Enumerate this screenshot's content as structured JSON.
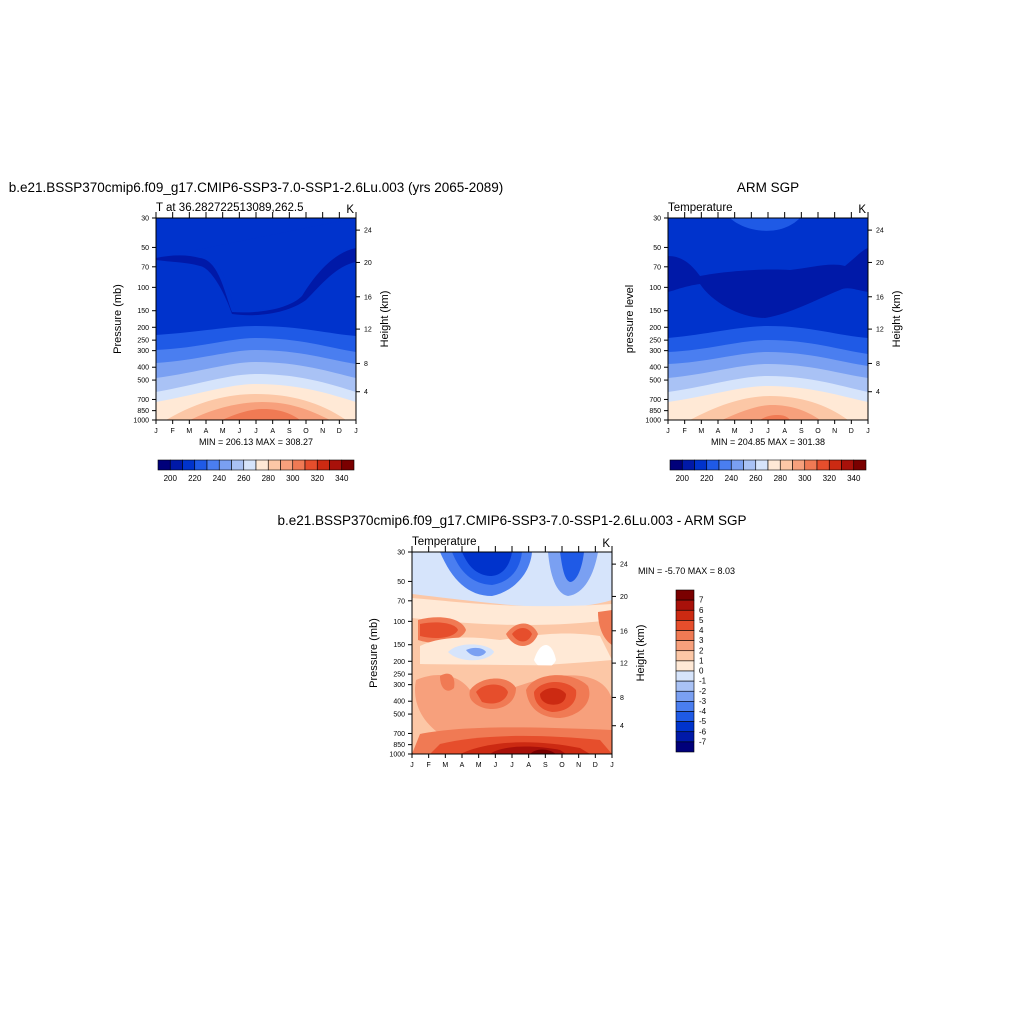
{
  "chart_data": [
    {
      "type": "heatmap",
      "title": "b.e21.BSSP370cmip6.f09_g17.CMIP6-SSP3-7.0-SSP1-2.6Lu.003 (yrs 2065-2089)",
      "subtitle_left": "T at 36.282722513089,262.5",
      "subtitle_right": "K",
      "ylabel": "Pressure (mb)",
      "ylabel_right": "Height (km)",
      "x_ticks": [
        "J",
        "F",
        "M",
        "A",
        "M",
        "J",
        "J",
        "A",
        "S",
        "O",
        "N",
        "D",
        "J"
      ],
      "y_ticks": [
        "30",
        "50",
        "70",
        "100",
        "150",
        "200",
        "250",
        "300",
        "400",
        "500",
        "700",
        "850",
        "1000"
      ],
      "y_ticks_right": [
        "24",
        "20",
        "16",
        "12",
        "8",
        "4"
      ],
      "minmax": "MIN = 206.13  MAX = 308.27",
      "colorbar_labels": [
        "200",
        "220",
        "240",
        "260",
        "280",
        "300",
        "320",
        "340"
      ],
      "min": 206.13,
      "max": 308.27
    },
    {
      "type": "heatmap",
      "title": "ARM SGP",
      "subtitle_left": "Temperature",
      "subtitle_right": "K",
      "ylabel": "pressure level",
      "ylabel_right": "Height (km)",
      "x_ticks": [
        "J",
        "F",
        "M",
        "A",
        "M",
        "J",
        "J",
        "A",
        "S",
        "O",
        "N",
        "D",
        "J"
      ],
      "y_ticks": [
        "30",
        "50",
        "70",
        "100",
        "150",
        "200",
        "250",
        "300",
        "400",
        "500",
        "700",
        "850",
        "1000"
      ],
      "y_ticks_right": [
        "24",
        "20",
        "16",
        "12",
        "8",
        "4"
      ],
      "minmax": "MIN = 204.85  MAX = 301.38",
      "colorbar_labels": [
        "200",
        "220",
        "240",
        "260",
        "280",
        "300",
        "320",
        "340"
      ],
      "min": 204.85,
      "max": 301.38
    },
    {
      "type": "heatmap",
      "title": "b.e21.BSSP370cmip6.f09_g17.CMIP6-SSP3-7.0-SSP1-2.6Lu.003 - ARM SGP",
      "subtitle_left": "Temperature",
      "subtitle_right": "K",
      "ylabel": "Pressure (mb)",
      "ylabel_right": "Height (km)",
      "x_ticks": [
        "J",
        "F",
        "M",
        "A",
        "M",
        "J",
        "J",
        "A",
        "S",
        "O",
        "N",
        "D",
        "J"
      ],
      "y_ticks": [
        "30",
        "50",
        "70",
        "100",
        "150",
        "200",
        "250",
        "300",
        "400",
        "500",
        "700",
        "850",
        "1000"
      ],
      "y_ticks_right": [
        "24",
        "20",
        "16",
        "12",
        "8",
        "4"
      ],
      "minmax": "MIN =  -5.70  MAX =   8.03",
      "colorbar_labels": [
        "7",
        "6",
        "5",
        "4",
        "3",
        "2",
        "1",
        "0",
        "-1",
        "-2",
        "-3",
        "-4",
        "-5",
        "-6",
        "-7"
      ],
      "min": -5.7,
      "max": 8.03
    }
  ],
  "colors": {
    "abs_scale": [
      "#00007a",
      "#0019a8",
      "#0033cc",
      "#1f5ae6",
      "#4a7ef0",
      "#7aa0f2",
      "#a9c2f5",
      "#d6e4fb",
      "#ffe9d6",
      "#fcc7a6",
      "#f7a07c",
      "#f07a54",
      "#e64e2c",
      "#cc2a12",
      "#a8110a",
      "#7a0000"
    ],
    "diff_scale": [
      "#7a0000",
      "#a8110a",
      "#cc2a12",
      "#e64e2c",
      "#f07a54",
      "#f7a07c",
      "#fcc7a6",
      "#ffe9d6",
      "#d6e4fb",
      "#a9c2f5",
      "#7aa0f2",
      "#4a7ef0",
      "#1f5ae6",
      "#0033cc",
      "#0019a8",
      "#00007a"
    ]
  }
}
